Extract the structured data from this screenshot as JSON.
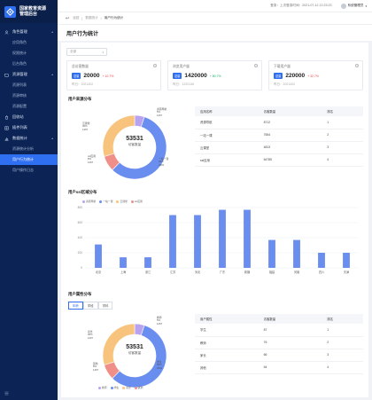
{
  "brand": {
    "title_line1": "国家教育资源",
    "title_line2": "管理后台"
  },
  "sidebar": {
    "groups": [
      {
        "label": "角色管理",
        "icon": "user-icon",
        "items": [
          "应用角色",
          "权限统计",
          "后台角色"
        ]
      },
      {
        "label": "资源管理",
        "icon": "folder-icon",
        "items": [
          "资源列表",
          "资源审核",
          "资源配置"
        ]
      },
      {
        "label": "回收站",
        "icon": "trash-icon",
        "items": []
      },
      {
        "label": "插件列表",
        "icon": "puzzle-icon",
        "items": []
      },
      {
        "label": "数据统计",
        "icon": "chart-icon",
        "items": [
          "资源统计分析",
          "用户行为统计",
          "用户操作日志"
        ]
      }
    ],
    "active_item": "用户行为统计"
  },
  "topbar": {
    "login_time_label": "登录：上次登录时间：2021-07-12 12:23:23",
    "user_name": "系统管理员"
  },
  "breadcrumb": {
    "back": "返回",
    "items": [
      "数据统计",
      "用户行为统计"
    ]
  },
  "page_title": "用户行为统计",
  "filter": {
    "placeholder": "全部"
  },
  "stats": [
    {
      "label": "总访客数量",
      "tag": "总量",
      "value": "20000",
      "change": "+ 10.7%",
      "change_color": "#f5474c",
      "prev": "昨日：2021402"
    },
    {
      "label": "浏览用户量",
      "tag": "总量",
      "value": "1420000",
      "change": "+ 80.7%",
      "change_color": "#15b36a",
      "prev": "昨日：1220146"
    },
    {
      "label": "下载用户量",
      "tag": "总量",
      "value": "220000",
      "change": "+ 32.7%",
      "change_color": "#f5474c",
      "prev": "昨日：2021402"
    }
  ],
  "source": {
    "title": "用户来源分布",
    "center_value": "53531",
    "center_label": "访客数量",
    "labels": [
      {
        "name": "资源导航",
        "pct": "5%",
        "count": "1467"
      },
      {
        "name": "一站一课",
        "pct": "58%",
        "count": "2981"
      },
      {
        "name": "ssl应用",
        "pct": "8%",
        "count": "1467"
      },
      {
        "name": "云课堂",
        "pct": "30%",
        "count": "1467"
      }
    ],
    "legend": [
      "资源导航",
      "一站一课",
      "云课堂",
      "ssl应用"
    ],
    "table_headers": [
      "应用名称",
      "访客数量",
      "排名"
    ],
    "rows": [
      [
        "资源导航",
        "8712",
        "1"
      ],
      [
        "一站一课",
        "7654",
        "2"
      ],
      [
        "云课堂",
        "4813",
        "3"
      ],
      [
        "ssl应用",
        "64785",
        "4"
      ]
    ]
  },
  "region": {
    "title": "用户ssl区域分布"
  },
  "attr": {
    "title": "用户属性分布",
    "tabs": [
      "年龄",
      "学段",
      "学科"
    ],
    "center_value": "53531",
    "center_label": "访客数量",
    "labels": [
      {
        "name": "教师",
        "pct": "5%",
        "count": "1467"
      },
      {
        "name": "学生",
        "pct": "58%",
        "count": "2981"
      },
      {
        "name": "其他",
        "pct": "8%",
        "count": "1467"
      },
      {
        "name": "家长",
        "pct": "30%",
        "count": "1467"
      }
    ],
    "legend": [
      "教师",
      "学生",
      "家长",
      "其他"
    ],
    "table_headers": [
      "用户属性",
      "访客数量",
      "排名"
    ],
    "rows": [
      [
        "学生",
        "87",
        "1"
      ],
      [
        "教师",
        "76",
        "2"
      ],
      [
        "家长",
        "66",
        "3"
      ],
      [
        "其他",
        "64",
        "4"
      ]
    ]
  },
  "colors": {
    "blue": "#6a8ef0",
    "orange": "#f8c47d",
    "red": "#f08f88",
    "purple": "#b9a2f0",
    "bar": "#6a8ef0"
  },
  "chart_data": [
    {
      "type": "pie",
      "title": "用户来源分布",
      "categories": [
        "资源导航",
        "一站一课",
        "ssl应用",
        "云课堂"
      ],
      "values": [
        5,
        58,
        8,
        30
      ]
    },
    {
      "type": "bar",
      "title": "用户ssl区域分布",
      "categories": [
        "北京",
        "上海",
        "浙江",
        "江苏",
        "河北",
        "广东",
        "新疆",
        "福建",
        "河南",
        "四川",
        "天津"
      ],
      "values": [
        310,
        140,
        140,
        700,
        700,
        770,
        770,
        370,
        370,
        200,
        200
      ],
      "ylim": [
        0,
        800
      ],
      "yticks": [
        0,
        200,
        400,
        600,
        800
      ],
      "grid": true
    },
    {
      "type": "pie",
      "title": "用户属性分布",
      "categories": [
        "教师",
        "学生",
        "其他",
        "家长"
      ],
      "values": [
        5,
        58,
        8,
        30
      ]
    }
  ]
}
